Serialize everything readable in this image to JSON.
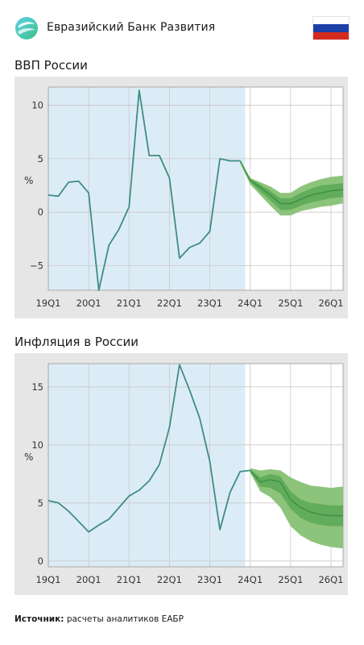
{
  "header": {
    "bank_name": "Евразийский Банк Развития",
    "logo_icon": "eabr-logo-icon",
    "flag_icon": "russia-flag-icon",
    "flag_colors": [
      "#ffffff",
      "#1c3fa8",
      "#d52b1e"
    ]
  },
  "colors": {
    "history_band": "#dcecf7",
    "panel_bg": "#e6e6e6",
    "line": "#3f8c84",
    "forecast_line": "#3e9248",
    "band_outer": "#8dc47b",
    "band_inner": "#62ad5c"
  },
  "chart_data": [
    {
      "type": "line",
      "title": "ВВП России",
      "ylabel": "%",
      "ylim": [
        -7.3,
        11.7
      ],
      "yticks": [
        -5,
        0,
        5,
        10
      ],
      "ytick_labels": [
        "−5",
        "0",
        "5",
        "10"
      ],
      "xtick_labels": [
        "19Q1",
        "20Q1",
        "21Q1",
        "22Q1",
        "23Q1",
        "24Q1",
        "25Q1",
        "26Q1"
      ],
      "xlim": [
        0,
        29.2
      ],
      "history_band_end": 19.5,
      "series": [
        {
          "role": "actual",
          "x": [
            0,
            1,
            2,
            3,
            4,
            5,
            6,
            7,
            8,
            9,
            10,
            11,
            12,
            13,
            14,
            15,
            16,
            17,
            18,
            19
          ],
          "values": [
            1.6,
            1.5,
            2.8,
            2.9,
            1.8,
            -7.3,
            -3.1,
            -1.6,
            0.5,
            11.4,
            5.3,
            5.3,
            3.2,
            -4.3,
            -3.3,
            -2.9,
            -1.8,
            5.0,
            4.8,
            4.8
          ]
        },
        {
          "role": "forecast",
          "x": [
            19,
            20,
            21,
            22,
            23,
            24,
            25,
            26,
            27,
            28,
            29,
            29.2
          ],
          "values": [
            4.8,
            3.0,
            2.3,
            1.6,
            0.8,
            0.8,
            1.2,
            1.6,
            1.8,
            2.0,
            2.1,
            2.1
          ],
          "outer_lower": [
            4.6,
            2.6,
            1.6,
            0.6,
            -0.3,
            -0.3,
            0.1,
            0.3,
            0.5,
            0.6,
            0.8,
            0.8
          ],
          "outer_upper": [
            4.8,
            3.2,
            2.8,
            2.4,
            1.8,
            1.8,
            2.4,
            2.8,
            3.1,
            3.3,
            3.4,
            3.4
          ],
          "inner_lower": [
            4.7,
            2.8,
            1.9,
            1.1,
            0.2,
            0.2,
            0.6,
            0.9,
            1.1,
            1.3,
            1.4,
            1.4
          ],
          "inner_upper": [
            4.8,
            3.1,
            2.6,
            2.0,
            1.3,
            1.3,
            1.8,
            2.2,
            2.5,
            2.6,
            2.7,
            2.7
          ]
        }
      ]
    },
    {
      "type": "line",
      "title": "Инфляция в России",
      "ylabel": "%",
      "ylim": [
        -0.5,
        17
      ],
      "yticks": [
        0,
        5,
        10,
        15
      ],
      "ytick_labels": [
        "0",
        "5",
        "10",
        "15"
      ],
      "xtick_labels": [
        "19Q1",
        "20Q1",
        "21Q1",
        "22Q1",
        "23Q1",
        "24Q1",
        "25Q1",
        "26Q1"
      ],
      "xlim": [
        0,
        29.2
      ],
      "history_band_end": 19.5,
      "series": [
        {
          "role": "actual",
          "x": [
            0,
            1,
            2,
            3,
            4,
            5,
            6,
            7,
            8,
            9,
            10,
            11,
            12,
            13,
            14,
            15,
            16,
            17,
            18,
            19,
            20
          ],
          "values": [
            5.2,
            5.0,
            4.3,
            3.4,
            2.5,
            3.1,
            3.6,
            4.6,
            5.6,
            6.1,
            6.9,
            8.3,
            11.5,
            16.9,
            14.7,
            12.3,
            8.6,
            2.7,
            5.9,
            7.7,
            7.8
          ]
        },
        {
          "role": "forecast",
          "x": [
            20,
            21,
            22,
            23,
            24,
            25,
            26,
            27,
            28,
            29,
            29.2
          ],
          "values": [
            7.8,
            6.8,
            7.0,
            6.8,
            5.3,
            4.6,
            4.2,
            4.0,
            3.9,
            3.9,
            3.9
          ],
          "outer_lower": [
            7.6,
            6.0,
            5.5,
            4.6,
            3.0,
            2.2,
            1.7,
            1.4,
            1.2,
            1.1,
            1.1
          ],
          "outer_upper": [
            8.0,
            7.8,
            7.9,
            7.8,
            7.2,
            6.8,
            6.5,
            6.4,
            6.3,
            6.4,
            6.4
          ],
          "inner_lower": [
            7.7,
            6.4,
            6.3,
            5.8,
            4.5,
            3.7,
            3.3,
            3.1,
            3.0,
            3.0,
            3.0
          ],
          "inner_upper": [
            7.9,
            7.2,
            7.5,
            7.3,
            6.0,
            5.3,
            5.0,
            4.9,
            4.8,
            4.8,
            4.8
          ]
        }
      ]
    }
  ],
  "source": {
    "label": "Источник:",
    "text": "расчеты аналитиков ЕАБР"
  }
}
